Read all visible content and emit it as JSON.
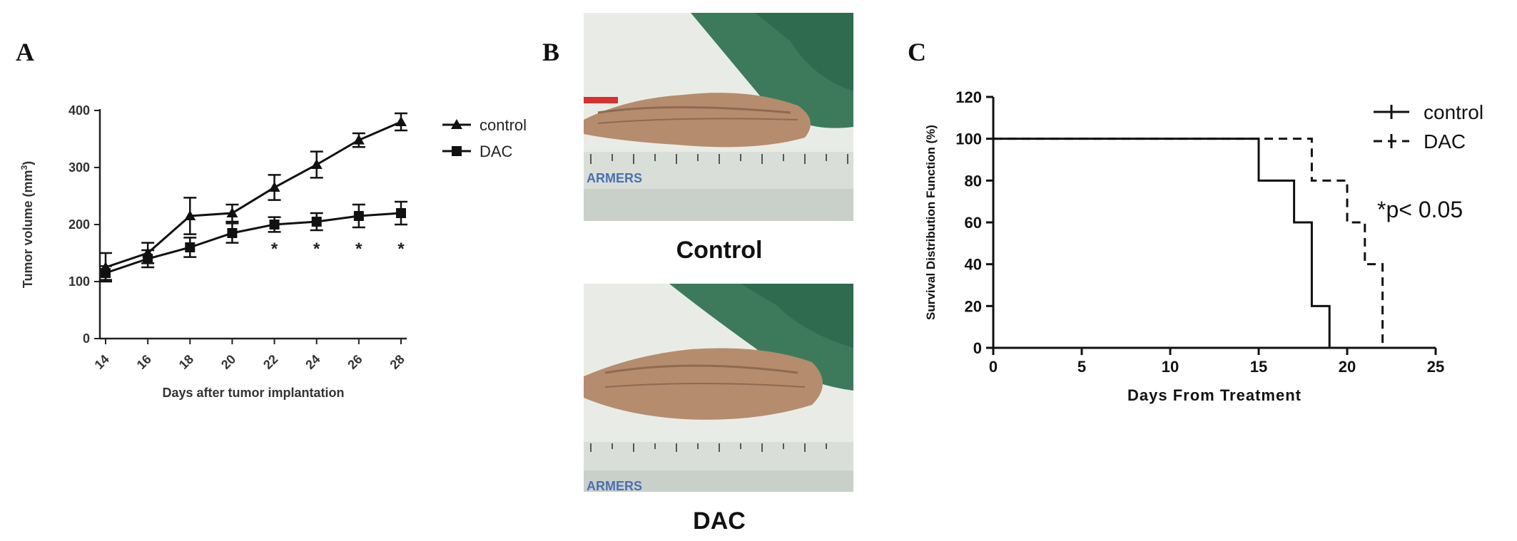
{
  "panels": {
    "a_label": "A",
    "b_label": "B",
    "c_label": "C"
  },
  "photos": {
    "top_caption": "Control",
    "bottom_caption": "DAC",
    "ruler_brand": "ARMERS",
    "colors": {
      "background_green": "#3d7a5c",
      "skin": "#b58c6e",
      "ruler": "#d9dfd8"
    }
  },
  "chart_data": [
    {
      "type": "line",
      "panel": "A",
      "xlabel": "Days after tumor implantation",
      "ylabel": "Tumor volume (mm",
      "ylabel_sup": "3",
      "ylabel_end": ")",
      "x": [
        14,
        16,
        18,
        20,
        22,
        24,
        26,
        28
      ],
      "x_ticks": [
        "14",
        "16",
        "18",
        "20",
        "22",
        "24",
        "26",
        "28"
      ],
      "y_ticks": [
        "0",
        "100",
        "200",
        "300",
        "400"
      ],
      "ylim": [
        0,
        400
      ],
      "series": [
        {
          "name": "control",
          "marker": "triangle",
          "values": [
            125,
            150,
            215,
            220,
            265,
            305,
            348,
            380
          ],
          "errors": [
            25,
            18,
            32,
            15,
            22,
            23,
            12,
            15
          ]
        },
        {
          "name": "DAC",
          "marker": "square",
          "values": [
            115,
            140,
            160,
            185,
            200,
            205,
            215,
            220
          ],
          "errors": [
            12,
            15,
            17,
            17,
            13,
            15,
            20,
            20
          ]
        }
      ],
      "significance_marks": [
        {
          "x": 22,
          "label": "*"
        },
        {
          "x": 24,
          "label": "*"
        },
        {
          "x": 26,
          "label": "*"
        },
        {
          "x": 28,
          "label": "*"
        }
      ]
    },
    {
      "type": "line",
      "panel": "C",
      "xlabel": "Days From Treatment",
      "ylabel": "Survival Distribution Function (%)",
      "x_ticks": [
        "0",
        "5",
        "10",
        "15",
        "20",
        "25"
      ],
      "y_ticks": [
        "0",
        "20",
        "40",
        "60",
        "80",
        "100",
        "120"
      ],
      "xlim": [
        0,
        25
      ],
      "ylim": [
        0,
        120
      ],
      "annotation": "*p< 0.05",
      "series": [
        {
          "name": "control",
          "style": "solid",
          "steps": [
            [
              0,
              100
            ],
            [
              15,
              100
            ],
            [
              15,
              80
            ],
            [
              17,
              80
            ],
            [
              17,
              60
            ],
            [
              18,
              60
            ],
            [
              18,
              20
            ],
            [
              19,
              20
            ],
            [
              19,
              0
            ]
          ]
        },
        {
          "name": "DAC",
          "style": "dashed",
          "steps": [
            [
              0,
              100
            ],
            [
              18,
              100
            ],
            [
              18,
              80
            ],
            [
              20,
              80
            ],
            [
              20,
              60
            ],
            [
              21,
              60
            ],
            [
              21,
              40
            ],
            [
              22,
              40
            ],
            [
              22,
              0
            ]
          ]
        }
      ]
    }
  ]
}
